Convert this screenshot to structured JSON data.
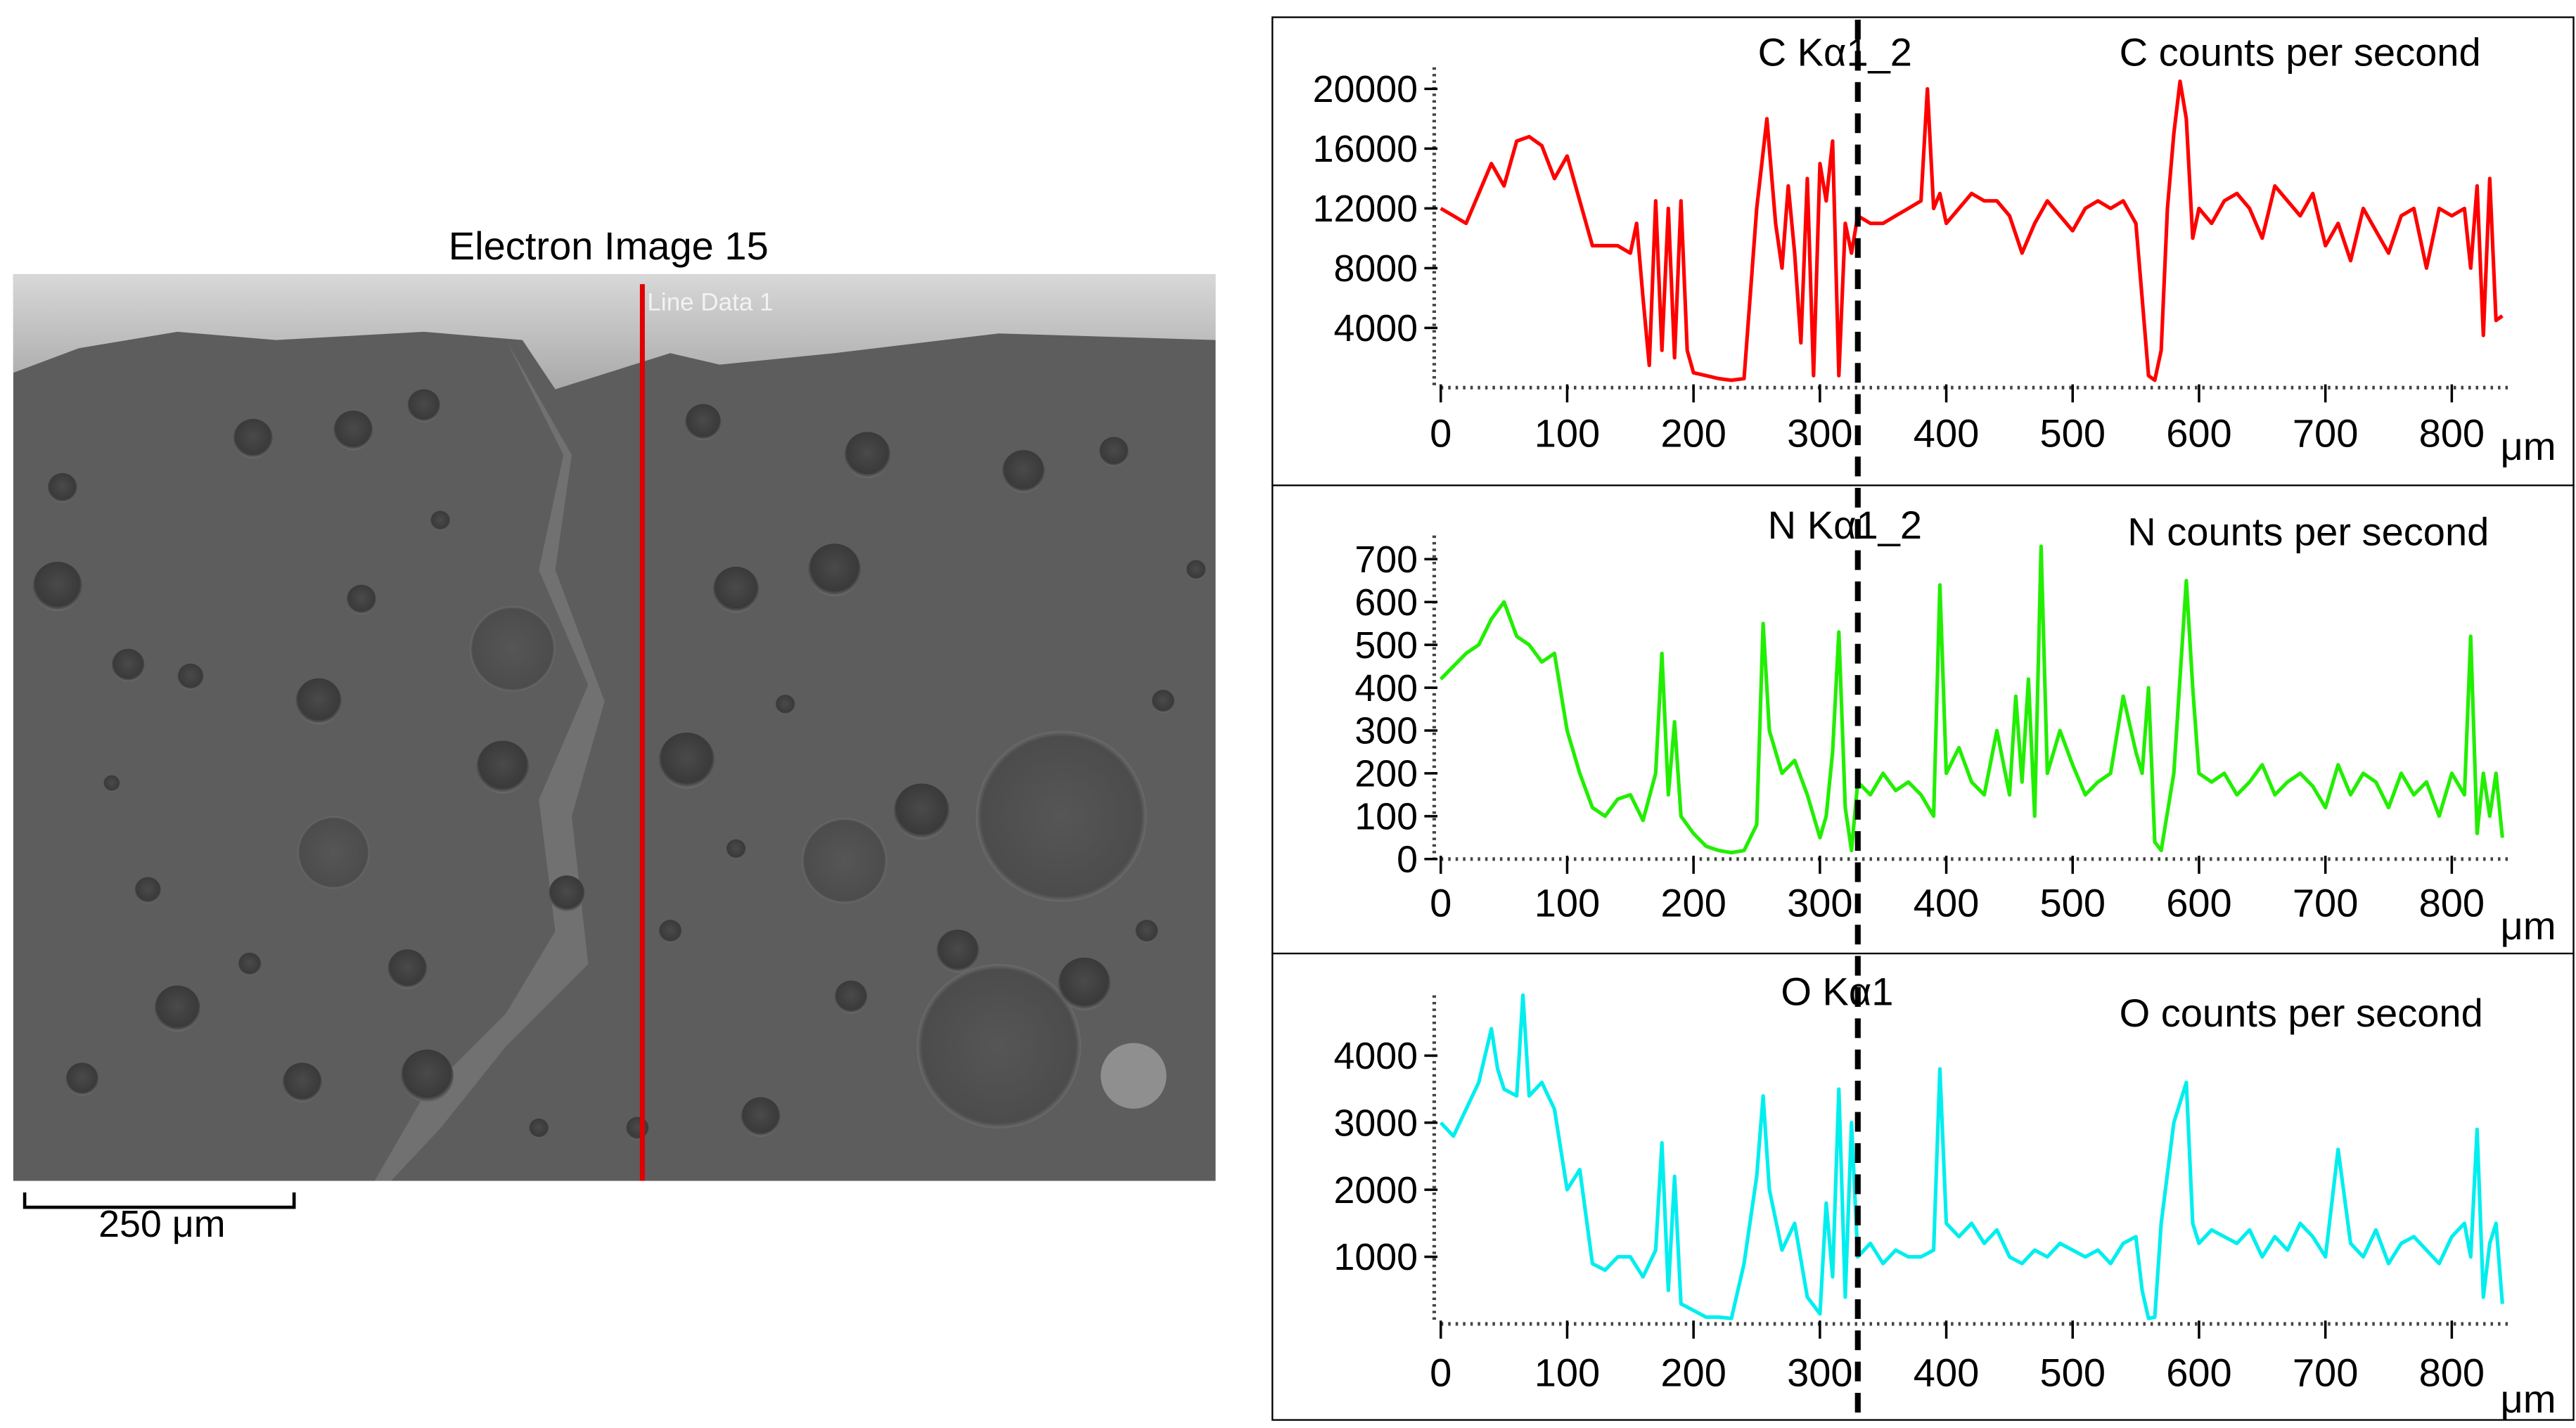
{
  "left_panel": {
    "title": "Electron Image 15",
    "line_label": "Line Data 1",
    "scalebar_label": "250 μm"
  },
  "dashed_marker_x": 330,
  "chart_data": [
    {
      "type": "line",
      "element": "C",
      "legend": "C Kα1_2",
      "ylabel": "C counts per second",
      "xlabel": "μm",
      "color": "#ff0000",
      "xlim": [
        0,
        845
      ],
      "ylim": [
        0,
        21000
      ],
      "yticks": [
        4000,
        8000,
        12000,
        16000,
        20000
      ],
      "ytick_labels": [
        "4000",
        "8000",
        "12000",
        "16000",
        "20000"
      ],
      "xticks": [
        0,
        100,
        200,
        300,
        400,
        500,
        600,
        700,
        800
      ],
      "xtick_labels": [
        "0",
        "100",
        "200",
        "300",
        "400",
        "500",
        "600",
        "700",
        "800"
      ],
      "series": [
        {
          "x": [
            0,
            10,
            20,
            30,
            40,
            50,
            60,
            70,
            80,
            90,
            100,
            110,
            120,
            130,
            140,
            150,
            155,
            160,
            165,
            170,
            175,
            180,
            185,
            190,
            195,
            200,
            210,
            220,
            230,
            240,
            250,
            258,
            265,
            270,
            275,
            280,
            285,
            290,
            295,
            300,
            305,
            310,
            315,
            320,
            325,
            330,
            340,
            350,
            360,
            370,
            380,
            385,
            390,
            395,
            400,
            410,
            420,
            430,
            440,
            450,
            460,
            470,
            480,
            490,
            500,
            510,
            520,
            530,
            540,
            550,
            555,
            560,
            565,
            570,
            575,
            580,
            585,
            590,
            595,
            600,
            610,
            620,
            630,
            640,
            650,
            660,
            670,
            680,
            690,
            700,
            710,
            720,
            730,
            740,
            750,
            760,
            770,
            780,
            790,
            800,
            810,
            815,
            820,
            825,
            830,
            835,
            840
          ],
          "y": [
            12000,
            11500,
            11000,
            13000,
            15000,
            13500,
            16500,
            16800,
            16200,
            14000,
            15500,
            12500,
            9500,
            9500,
            9500,
            9000,
            11000,
            6000,
            1500,
            12500,
            2500,
            12000,
            2000,
            12500,
            2500,
            1000,
            800,
            600,
            500,
            600,
            12000,
            18000,
            11000,
            8000,
            13500,
            9000,
            3000,
            14000,
            800,
            15000,
            12500,
            16500,
            800,
            11000,
            9000,
            11500,
            11000,
            11000,
            11500,
            12000,
            12500,
            20000,
            12000,
            13000,
            11000,
            12000,
            13000,
            12500,
            12500,
            11500,
            9000,
            11000,
            12500,
            11500,
            10500,
            12000,
            12500,
            12000,
            12500,
            11000,
            6000,
            800,
            500,
            2500,
            12000,
            17000,
            20500,
            18000,
            10000,
            12000,
            11000,
            12500,
            13000,
            12000,
            10000,
            13500,
            12500,
            11500,
            13000,
            9500,
            11000,
            8500,
            12000,
            10500,
            9000,
            11500,
            12000,
            8000,
            12000,
            11500,
            12000,
            8000,
            13500,
            3500,
            14000,
            4500,
            4800
          ]
        }
      ]
    },
    {
      "type": "line",
      "element": "N",
      "legend": "N Kα1_2",
      "ylabel": "N counts per second",
      "xlabel": "μm",
      "color": "#22ee00",
      "xlim": [
        0,
        845
      ],
      "ylim": [
        0,
        740
      ],
      "yticks": [
        0,
        100,
        200,
        300,
        400,
        500,
        600,
        700
      ],
      "ytick_labels": [
        "0",
        "100",
        "200",
        "300",
        "400",
        "500",
        "600",
        "700"
      ],
      "xticks": [
        0,
        100,
        200,
        300,
        400,
        500,
        600,
        700,
        800
      ],
      "xtick_labels": [
        "0",
        "100",
        "200",
        "300",
        "400",
        "500",
        "600",
        "700",
        "800"
      ],
      "series": [
        {
          "x": [
            0,
            10,
            20,
            30,
            40,
            50,
            60,
            70,
            80,
            90,
            100,
            110,
            120,
            130,
            140,
            150,
            160,
            170,
            175,
            180,
            185,
            190,
            200,
            210,
            220,
            230,
            240,
            250,
            255,
            260,
            270,
            280,
            290,
            300,
            305,
            310,
            315,
            320,
            325,
            330,
            340,
            350,
            360,
            370,
            380,
            390,
            395,
            400,
            410,
            420,
            430,
            440,
            450,
            455,
            460,
            465,
            470,
            475,
            480,
            490,
            500,
            510,
            520,
            530,
            540,
            550,
            555,
            560,
            565,
            570,
            580,
            590,
            595,
            600,
            610,
            620,
            630,
            640,
            650,
            660,
            670,
            680,
            690,
            700,
            710,
            720,
            730,
            740,
            750,
            760,
            770,
            780,
            790,
            800,
            810,
            815,
            820,
            825,
            830,
            835,
            840
          ],
          "y": [
            420,
            450,
            480,
            500,
            560,
            600,
            520,
            500,
            460,
            480,
            300,
            200,
            120,
            100,
            140,
            150,
            90,
            200,
            480,
            150,
            320,
            100,
            60,
            30,
            20,
            15,
            20,
            80,
            550,
            300,
            200,
            230,
            150,
            50,
            100,
            250,
            530,
            120,
            20,
            180,
            150,
            200,
            160,
            180,
            150,
            100,
            640,
            200,
            260,
            180,
            150,
            300,
            150,
            380,
            180,
            420,
            100,
            730,
            200,
            300,
            220,
            150,
            180,
            200,
            380,
            250,
            200,
            400,
            40,
            20,
            200,
            650,
            400,
            200,
            180,
            200,
            150,
            180,
            220,
            150,
            180,
            200,
            170,
            120,
            220,
            150,
            200,
            180,
            120,
            200,
            150,
            180,
            100,
            200,
            150,
            520,
            60,
            200,
            100,
            200,
            50
          ]
        }
      ]
    },
    {
      "type": "line",
      "element": "O",
      "legend": "O Kα1",
      "ylabel": "O counts per second",
      "xlabel": "μm",
      "color": "#00eeee",
      "xlim": [
        0,
        845
      ],
      "ylim": [
        0,
        4800
      ],
      "yticks": [
        1000,
        2000,
        3000,
        4000
      ],
      "ytick_labels": [
        "1000",
        "2000",
        "3000",
        "4000"
      ],
      "xticks": [
        0,
        100,
        200,
        300,
        400,
        500,
        600,
        700,
        800
      ],
      "xtick_labels": [
        "0",
        "100",
        "200",
        "300",
        "400",
        "500",
        "600",
        "700",
        "800"
      ],
      "series": [
        {
          "x": [
            0,
            10,
            20,
            30,
            40,
            45,
            50,
            60,
            65,
            70,
            80,
            90,
            100,
            110,
            120,
            130,
            140,
            150,
            160,
            170,
            175,
            180,
            185,
            190,
            200,
            210,
            220,
            230,
            240,
            250,
            255,
            260,
            270,
            280,
            290,
            300,
            305,
            310,
            315,
            320,
            325,
            330,
            340,
            350,
            360,
            370,
            380,
            390,
            395,
            400,
            410,
            420,
            430,
            440,
            450,
            460,
            470,
            480,
            490,
            500,
            510,
            520,
            530,
            540,
            550,
            555,
            560,
            565,
            570,
            580,
            590,
            595,
            600,
            610,
            620,
            630,
            640,
            650,
            660,
            670,
            680,
            690,
            700,
            710,
            720,
            730,
            740,
            750,
            760,
            770,
            780,
            790,
            800,
            810,
            815,
            820,
            825,
            830,
            835,
            840
          ],
          "y": [
            3000,
            2800,
            3200,
            3600,
            4400,
            3800,
            3500,
            3400,
            4900,
            3400,
            3600,
            3200,
            2000,
            2300,
            900,
            800,
            1000,
            1000,
            700,
            1100,
            2700,
            500,
            2200,
            300,
            200,
            100,
            100,
            80,
            900,
            2200,
            3400,
            2000,
            1100,
            1500,
            400,
            150,
            1800,
            700,
            3500,
            400,
            3000,
            1000,
            1200,
            900,
            1100,
            1000,
            1000,
            1100,
            3800,
            1500,
            1300,
            1500,
            1200,
            1400,
            1000,
            900,
            1100,
            1000,
            1200,
            1100,
            1000,
            1100,
            900,
            1200,
            1300,
            500,
            80,
            100,
            1500,
            3000,
            3600,
            1500,
            1200,
            1400,
            1300,
            1200,
            1400,
            1000,
            1300,
            1100,
            1500,
            1300,
            1000,
            2600,
            1200,
            1000,
            1400,
            900,
            1200,
            1300,
            1100,
            900,
            1300,
            1500,
            1000,
            2900,
            400,
            1200,
            1500,
            300
          ]
        }
      ]
    }
  ]
}
